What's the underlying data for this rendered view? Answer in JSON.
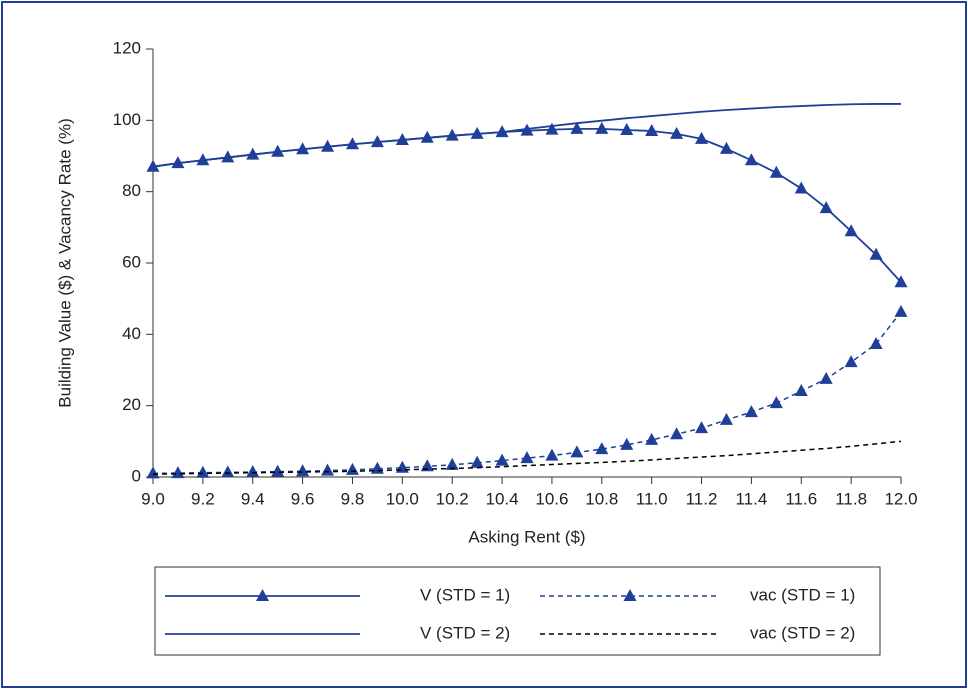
{
  "chart_data": {
    "type": "line",
    "xlabel": "Asking Rent ($)",
    "ylabel": "Building Value ($) & Vacancy Rate (%)",
    "x": [
      9.0,
      9.1,
      9.2,
      9.3,
      9.4,
      9.5,
      9.6,
      9.7,
      9.8,
      9.9,
      10.0,
      10.1,
      10.2,
      10.3,
      10.4,
      10.5,
      10.6,
      10.7,
      10.8,
      10.9,
      11.0,
      11.1,
      11.2,
      11.3,
      11.4,
      11.5,
      11.6,
      11.7,
      11.8,
      11.9,
      12.0
    ],
    "series": [
      {
        "name": "V (STD = 1)",
        "color": "#1f3f99",
        "marker": "triangle",
        "dashed": false,
        "values": [
          87,
          88,
          88.8,
          89.6,
          90.4,
          91.2,
          91.9,
          92.6,
          93.3,
          93.9,
          94.5,
          95.1,
          95.7,
          96.2,
          96.7,
          97.1,
          97.4,
          97.6,
          97.6,
          97.3,
          97.0,
          96.2,
          94.8,
          92.0,
          88.8,
          85.3,
          80.9,
          75.4,
          68.9,
          62.3,
          54.6
        ]
      },
      {
        "name": "vac (STD = 1)",
        "color": "#1f3f99",
        "marker": "triangle",
        "dashed": true,
        "values": [
          1.0,
          1.1,
          1.2,
          1.3,
          1.4,
          1.5,
          1.6,
          1.8,
          2.0,
          2.3,
          2.6,
          3.0,
          3.4,
          4.0,
          4.6,
          5.3,
          6.0,
          6.9,
          7.8,
          9.0,
          10.4,
          12.0,
          13.7,
          16.0,
          18.2,
          20.7,
          24.1,
          27.5,
          32.2,
          37.3,
          46.3
        ]
      },
      {
        "name": "V (STD = 2)",
        "color": "#1f3f99",
        "marker": "none",
        "dashed": false,
        "values": [
          87,
          88,
          88.8,
          89.6,
          90.4,
          91.2,
          91.9,
          92.6,
          93.3,
          93.9,
          94.5,
          95.1,
          95.7,
          96.2,
          96.7,
          97.6,
          98.4,
          99.2,
          99.9,
          100.6,
          101.2,
          101.8,
          102.4,
          102.9,
          103.3,
          103.7,
          104.0,
          104.3,
          104.5,
          104.6,
          104.6
        ]
      },
      {
        "name": "vac (STD = 2)",
        "color": "#000000",
        "marker": "none",
        "dashed": true,
        "values": [
          0.8,
          0.9,
          1.0,
          1.1,
          1.2,
          1.3,
          1.4,
          1.5,
          1.6,
          1.8,
          2.0,
          2.2,
          2.4,
          2.6,
          2.9,
          3.2,
          3.5,
          3.8,
          4.1,
          4.4,
          4.8,
          5.2,
          5.6,
          6.0,
          6.5,
          7.0,
          7.5,
          8.0,
          8.6,
          9.3,
          10.0
        ]
      }
    ],
    "xlim": [
      9.0,
      12.0
    ],
    "xticks": [
      {
        "value": 9.0,
        "label": "9.0"
      },
      {
        "value": 9.2,
        "label": "9.2"
      },
      {
        "value": 9.4,
        "label": "9.4"
      },
      {
        "value": 9.6,
        "label": "9.6"
      },
      {
        "value": 9.8,
        "label": "9.8"
      },
      {
        "value": 10.0,
        "label": "10.0"
      },
      {
        "value": 10.2,
        "label": "10.2"
      },
      {
        "value": 10.4,
        "label": "10.4"
      },
      {
        "value": 10.6,
        "label": "10.6"
      },
      {
        "value": 10.8,
        "label": "10.8"
      },
      {
        "value": 11.0,
        "label": "11.0"
      },
      {
        "value": 11.2,
        "label": "11.2"
      },
      {
        "value": 11.4,
        "label": "11.4"
      },
      {
        "value": 11.6,
        "label": "11.6"
      },
      {
        "value": 11.8,
        "label": "11.8"
      },
      {
        "value": 12.0,
        "label": "12.0"
      }
    ],
    "ylim": [
      0,
      120
    ],
    "yticks": [
      0,
      20,
      40,
      60,
      80,
      100,
      120
    ],
    "grid": false,
    "legend": "bottom"
  }
}
